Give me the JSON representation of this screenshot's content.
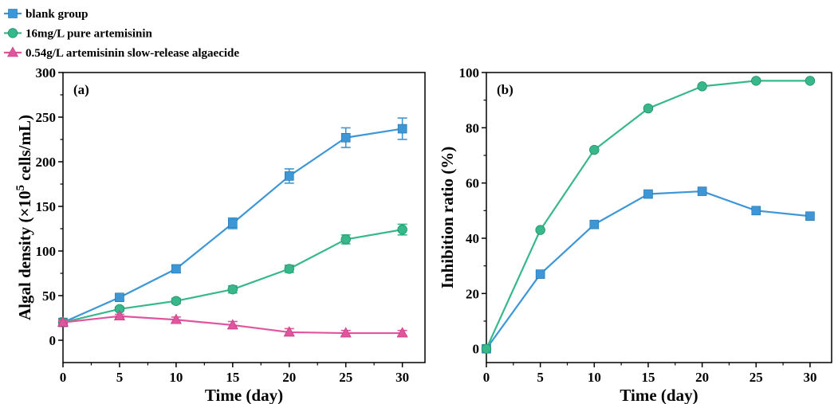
{
  "colors": {
    "blank": "#3d96d6",
    "pure": "#37b88a",
    "slow": "#e0559e"
  },
  "legend": [
    {
      "key": "blank",
      "label": "blank group",
      "marker": "square"
    },
    {
      "key": "pure",
      "label": "16mg/L pure artemisinin",
      "marker": "circle"
    },
    {
      "key": "slow",
      "label": "0.54g/L artemisinin slow-release algaecide",
      "marker": "triangle"
    }
  ],
  "chart_data": [
    {
      "type": "line",
      "panel_label": "(a)",
      "xlabel": "Time (day)",
      "ylabel_parts": [
        "Algal density (×10",
        "5",
        " cells/mL)"
      ],
      "x": [
        0,
        5,
        10,
        15,
        20,
        25,
        30
      ],
      "xlim": [
        0,
        32
      ],
      "ylim": [
        -25,
        300
      ],
      "xticks": [
        0,
        5,
        10,
        15,
        20,
        25,
        30
      ],
      "yticks": [
        0,
        50,
        100,
        150,
        200,
        250,
        300
      ],
      "series": [
        {
          "key": "blank",
          "marker": "square",
          "values": [
            20,
            48,
            80,
            131,
            184,
            227,
            237
          ],
          "errors": [
            2,
            3,
            4,
            6,
            8,
            11,
            12
          ]
        },
        {
          "key": "pure",
          "marker": "circle",
          "values": [
            20,
            35,
            44,
            57,
            80,
            113,
            124
          ],
          "errors": [
            2,
            2,
            3,
            4,
            4,
            5,
            6
          ]
        },
        {
          "key": "slow",
          "marker": "triangle",
          "values": [
            20,
            27,
            23,
            17,
            9,
            8,
            8
          ],
          "errors": [
            2,
            2,
            3,
            4,
            4,
            3,
            3
          ]
        }
      ]
    },
    {
      "type": "line",
      "panel_label": "(b)",
      "xlabel": "Time (day)",
      "ylabel": "Inhibition ratio (%)",
      "x": [
        0,
        5,
        10,
        15,
        20,
        25,
        30
      ],
      "xlim": [
        0,
        32
      ],
      "ylim": [
        -5,
        100
      ],
      "xticks": [
        0,
        5,
        10,
        15,
        20,
        25,
        30
      ],
      "yticks": [
        0,
        20,
        40,
        60,
        80,
        100
      ],
      "series": [
        {
          "key": "blank",
          "marker": "square",
          "values": [
            0,
            27,
            45,
            56,
            57,
            50,
            48
          ]
        },
        {
          "key": "pure",
          "marker": "circle",
          "values": [
            0,
            43,
            72,
            87,
            95,
            97,
            97
          ]
        }
      ]
    }
  ]
}
